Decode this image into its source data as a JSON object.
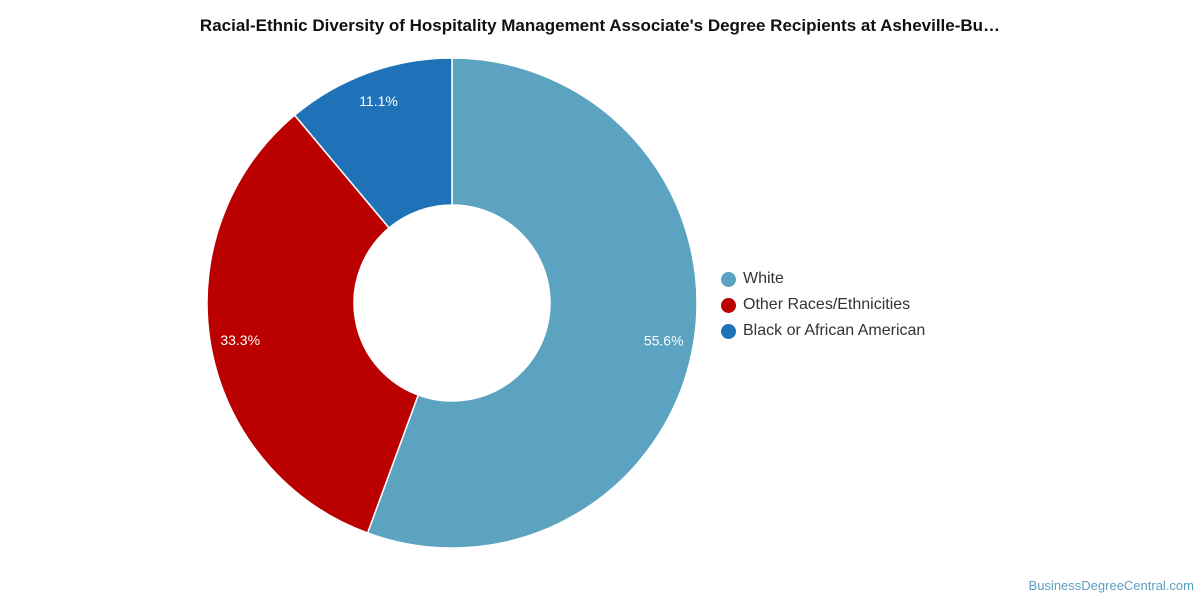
{
  "chart_data": {
    "type": "pie",
    "donut": true,
    "title": "Racial-Ethnic Diversity of Hospitality Management Associate's Degree Recipients at Asheville-Bu…",
    "legend_position": "right",
    "slices": [
      {
        "label": "White",
        "value": 55.6,
        "value_label": "55.6%",
        "color": "#5ba3c0"
      },
      {
        "label": "Other Races/Ethnicities",
        "value": 33.3,
        "value_label": "33.3%",
        "color": "#bb0000"
      },
      {
        "label": "Black or African American",
        "value": 11.1,
        "value_label": "11.1%",
        "color": "#1f72b8"
      }
    ]
  },
  "watermark": "BusinessDegreeCentral.com"
}
